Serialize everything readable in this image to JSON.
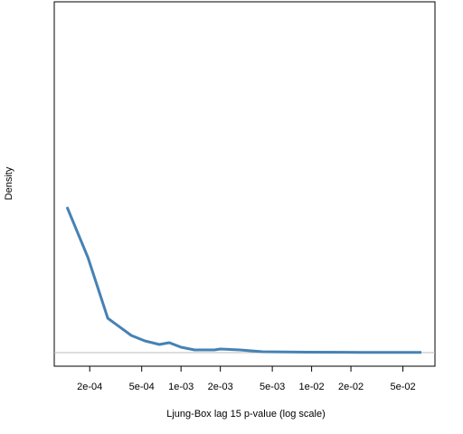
{
  "chart_data": {
    "type": "line",
    "x_label": "Ljung-Box lag 15 p-value (log scale)",
    "y_label": "Density",
    "log_x": true,
    "zero_line": true,
    "xlim": [
      0.000107,
      0.088
    ],
    "ylim": [
      -0.15,
      3.88
    ],
    "xticks": [
      {
        "value": 0.0002,
        "label": "2e-04"
      },
      {
        "value": 0.0005,
        "label": "5e-04"
      },
      {
        "value": 0.001,
        "label": "1e-03"
      },
      {
        "value": 0.002,
        "label": "2e-03"
      },
      {
        "value": 0.005,
        "label": "5e-03"
      },
      {
        "value": 0.01,
        "label": "1e-02"
      },
      {
        "value": 0.02,
        "label": "2e-02"
      },
      {
        "value": 0.05,
        "label": "5e-02"
      }
    ],
    "series": [
      {
        "color": "#4682b4",
        "x": [
          0.000134,
          0.000194,
          0.000275,
          0.000416,
          0.000528,
          0.000682,
          0.000813,
          0.001,
          0.00127,
          0.0018,
          0.002,
          0.00282,
          0.0042,
          0.0093,
          0.0242,
          0.0693
        ],
        "values": [
          1.61,
          1.05,
          0.38,
          0.19,
          0.13,
          0.09,
          0.11,
          0.06,
          0.03,
          0.03,
          0.04,
          0.03,
          0.01,
          0.005,
          0.003,
          0.002
        ]
      }
    ]
  }
}
